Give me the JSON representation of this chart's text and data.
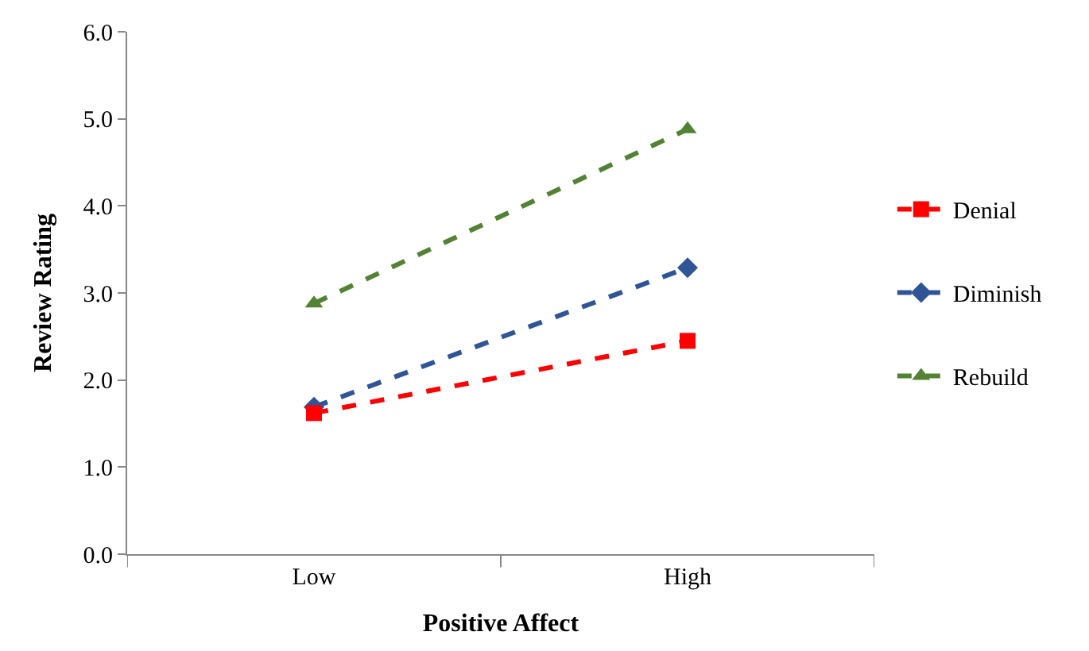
{
  "chart_data": {
    "type": "line",
    "xlabel": "Positive Affect",
    "ylabel": "Review Rating",
    "categories": [
      "Low",
      "High"
    ],
    "series": [
      {
        "name": "Denial",
        "color": "#ff0000",
        "marker": "square",
        "values": [
          1.62,
          2.45
        ]
      },
      {
        "name": "Diminish",
        "color": "#2f5597",
        "marker": "diamond",
        "values": [
          1.69,
          3.29
        ]
      },
      {
        "name": "Rebuild",
        "color": "#548235",
        "marker": "triangle",
        "values": [
          2.88,
          4.88
        ]
      }
    ],
    "ylim": [
      0,
      6
    ],
    "yticks": [
      {
        "value": 0,
        "label": "0.0"
      },
      {
        "value": 1,
        "label": "1.0"
      },
      {
        "value": 2,
        "label": "2.0"
      },
      {
        "value": 3,
        "label": "3.0"
      },
      {
        "value": 4,
        "label": "4.0"
      },
      {
        "value": 5,
        "label": "5.0"
      },
      {
        "value": 6,
        "label": "6.0"
      }
    ],
    "legend": "right",
    "line_style": "dashed"
  }
}
